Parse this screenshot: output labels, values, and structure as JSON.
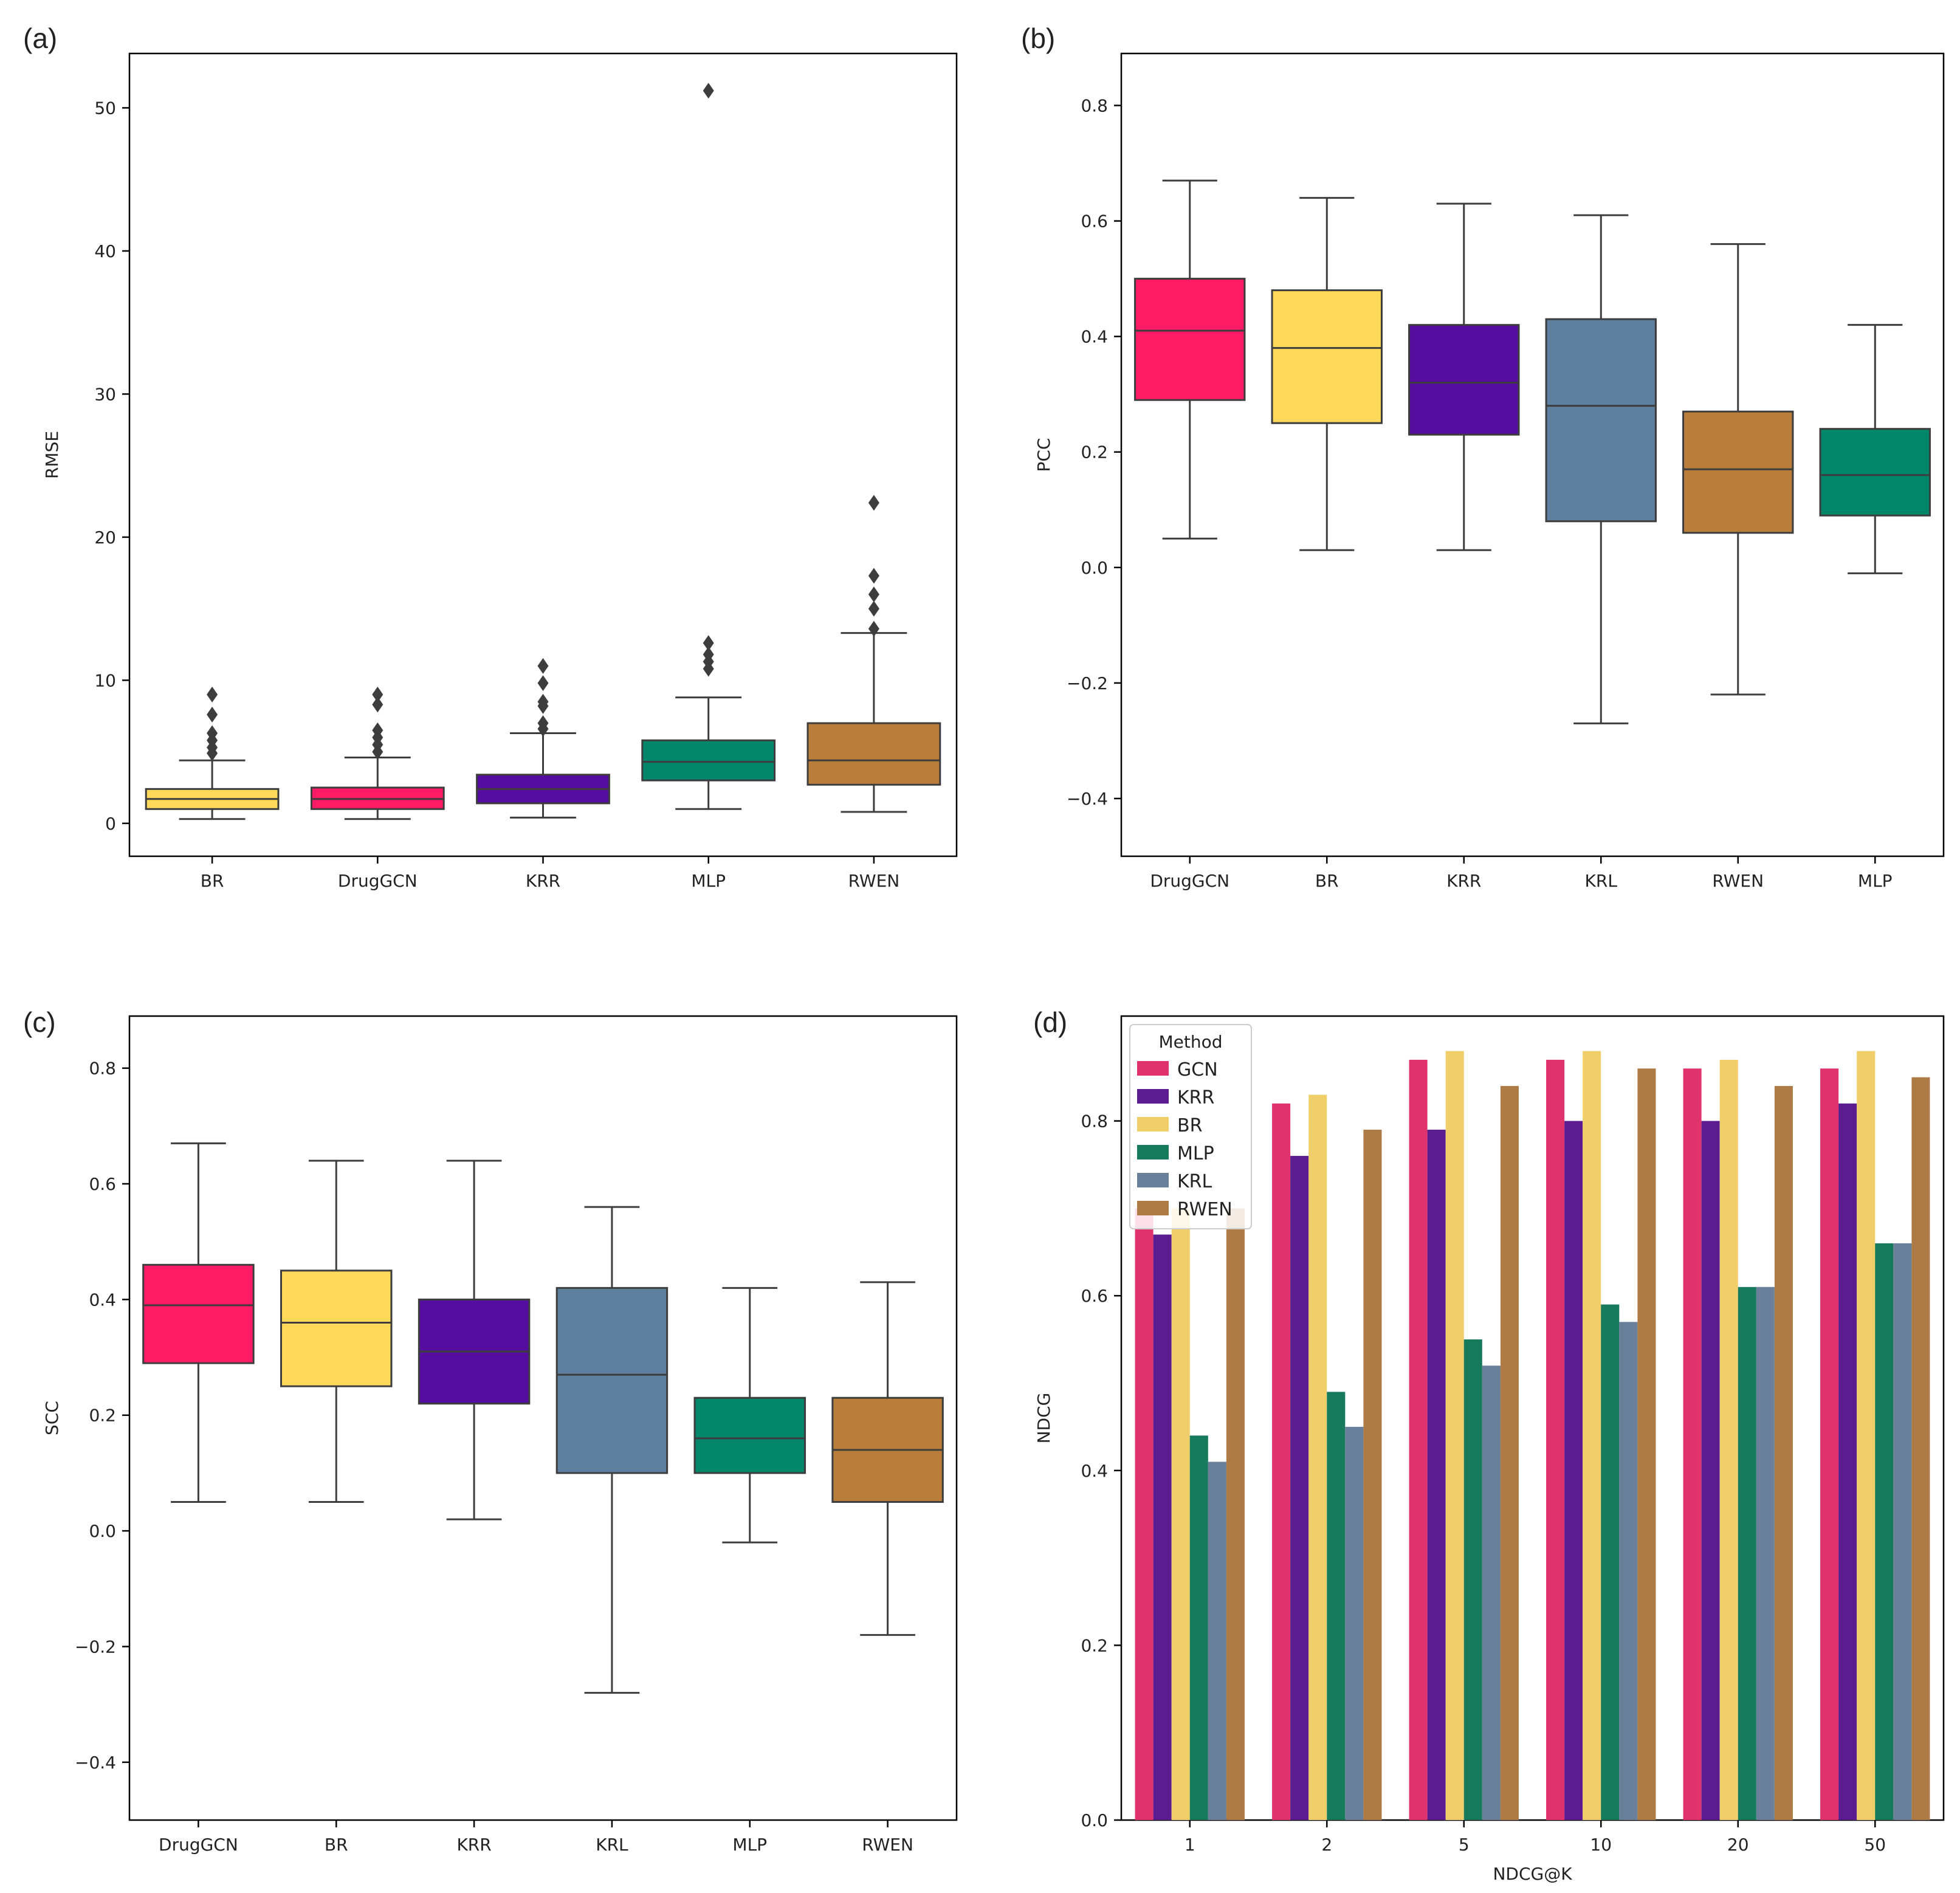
{
  "colors": {
    "DrugGCN": "#FF1A66",
    "BR": "#FFD95A",
    "KRR": "#540D9E",
    "KRL": "#5F7F9F",
    "RWEN": "#B97E3C",
    "MLP": "#04866A",
    "bar_GCN": "#E0336E",
    "bar_KRR": "#5A1C8E",
    "bar_BR": "#F0CF6A",
    "bar_MLP": "#177A5C",
    "bar_KRL": "#6A7F99",
    "bar_RWEN": "#AE7B47"
  },
  "chart_data": [
    {
      "panel": "(a)",
      "type": "box",
      "xlabel": "",
      "ylabel": "RMSE",
      "ylim": [
        -2.3,
        53.8
      ],
      "yticks": [
        0,
        10,
        20,
        30,
        40,
        50
      ],
      "tick_labels": [
        "0",
        "10",
        "20",
        "30",
        "40",
        "50"
      ],
      "categories": [
        "BR",
        "DrugGCN",
        "KRR",
        "MLP",
        "RWEN"
      ],
      "boxes": [
        {
          "name": "BR",
          "whisker_low": 0.3,
          "q1": 1.0,
          "median": 1.7,
          "q3": 2.4,
          "whisker_high": 4.4,
          "outliers": [
            4.9,
            5.3,
            5.8,
            6.3,
            7.6,
            9.0
          ]
        },
        {
          "name": "DrugGCN",
          "whisker_low": 0.3,
          "q1": 1.0,
          "median": 1.7,
          "q3": 2.5,
          "whisker_high": 4.6,
          "outliers": [
            5.0,
            5.5,
            6.0,
            6.5,
            8.3,
            9.0
          ]
        },
        {
          "name": "KRR",
          "whisker_low": 0.4,
          "q1": 1.4,
          "median": 2.4,
          "q3": 3.4,
          "whisker_high": 6.3,
          "outliers": [
            6.6,
            7.0,
            8.2,
            8.5,
            9.8,
            11.0
          ]
        },
        {
          "name": "MLP",
          "whisker_low": 1.0,
          "q1": 3.0,
          "median": 4.3,
          "q3": 5.8,
          "whisker_high": 8.8,
          "outliers": [
            10.8,
            11.3,
            11.8,
            12.6,
            51.2
          ]
        },
        {
          "name": "RWEN",
          "whisker_low": 0.8,
          "q1": 2.7,
          "median": 4.4,
          "q3": 7.0,
          "whisker_high": 13.3,
          "outliers": [
            13.6,
            15.0,
            16.0,
            17.3,
            22.4
          ]
        }
      ]
    },
    {
      "panel": "(b)",
      "type": "box",
      "xlabel": "",
      "ylabel": "PCC",
      "ylim": [
        -0.5,
        0.89
      ],
      "yticks": [
        -0.4,
        -0.2,
        0.0,
        0.2,
        0.4,
        0.6,
        0.8
      ],
      "tick_labels": [
        "−0.4",
        "−0.2",
        "0.0",
        "0.2",
        "0.4",
        "0.6",
        "0.8"
      ],
      "categories": [
        "DrugGCN",
        "BR",
        "KRR",
        "KRL",
        "RWEN",
        "MLP"
      ],
      "boxes": [
        {
          "name": "DrugGCN",
          "whisker_low": 0.05,
          "q1": 0.29,
          "median": 0.41,
          "q3": 0.5,
          "whisker_high": 0.67,
          "outliers": []
        },
        {
          "name": "BR",
          "whisker_low": 0.03,
          "q1": 0.25,
          "median": 0.38,
          "q3": 0.48,
          "whisker_high": 0.64,
          "outliers": []
        },
        {
          "name": "KRR",
          "whisker_low": 0.03,
          "q1": 0.23,
          "median": 0.32,
          "q3": 0.42,
          "whisker_high": 0.63,
          "outliers": []
        },
        {
          "name": "KRL",
          "whisker_low": -0.27,
          "q1": 0.08,
          "median": 0.28,
          "q3": 0.43,
          "whisker_high": 0.61,
          "outliers": []
        },
        {
          "name": "RWEN",
          "whisker_low": -0.22,
          "q1": 0.06,
          "median": 0.17,
          "q3": 0.27,
          "whisker_high": 0.56,
          "outliers": []
        },
        {
          "name": "MLP",
          "whisker_low": -0.01,
          "q1": 0.09,
          "median": 0.16,
          "q3": 0.24,
          "whisker_high": 0.42,
          "outliers": []
        }
      ]
    },
    {
      "panel": "(c)",
      "type": "box",
      "xlabel": "",
      "ylabel": "SCC",
      "ylim": [
        -0.5,
        0.89
      ],
      "yticks": [
        -0.4,
        -0.2,
        0.0,
        0.2,
        0.4,
        0.6,
        0.8
      ],
      "tick_labels": [
        "−0.4",
        "−0.2",
        "0.0",
        "0.2",
        "0.4",
        "0.6",
        "0.8"
      ],
      "categories": [
        "DrugGCN",
        "BR",
        "KRR",
        "KRL",
        "MLP",
        "RWEN"
      ],
      "boxes": [
        {
          "name": "DrugGCN",
          "whisker_low": 0.05,
          "q1": 0.29,
          "median": 0.39,
          "q3": 0.46,
          "whisker_high": 0.67,
          "outliers": []
        },
        {
          "name": "BR",
          "whisker_low": 0.05,
          "q1": 0.25,
          "median": 0.36,
          "q3": 0.45,
          "whisker_high": 0.64,
          "outliers": []
        },
        {
          "name": "KRR",
          "whisker_low": 0.02,
          "q1": 0.22,
          "median": 0.31,
          "q3": 0.4,
          "whisker_high": 0.64,
          "outliers": []
        },
        {
          "name": "KRL",
          "whisker_low": -0.28,
          "q1": 0.1,
          "median": 0.27,
          "q3": 0.42,
          "whisker_high": 0.56,
          "outliers": []
        },
        {
          "name": "MLP",
          "whisker_low": -0.02,
          "q1": 0.1,
          "median": 0.16,
          "q3": 0.23,
          "whisker_high": 0.42,
          "outliers": []
        },
        {
          "name": "RWEN",
          "whisker_low": -0.18,
          "q1": 0.05,
          "median": 0.14,
          "q3": 0.23,
          "whisker_high": 0.43,
          "outliers": []
        }
      ]
    },
    {
      "panel": "(d)",
      "type": "bar",
      "xlabel": "NDCG@K",
      "ylabel": "NDCG",
      "ylim": [
        0.0,
        0.92
      ],
      "yticks": [
        0.0,
        0.2,
        0.4,
        0.6,
        0.8
      ],
      "tick_labels": [
        "0.0",
        "0.2",
        "0.4",
        "0.6",
        "0.8"
      ],
      "categories": [
        "1",
        "2",
        "5",
        "10",
        "20",
        "50"
      ],
      "legend": {
        "title": "Method",
        "position": "top-left"
      },
      "series": [
        {
          "name": "GCN",
          "values": [
            0.7,
            0.82,
            0.87,
            0.87,
            0.86,
            0.86
          ]
        },
        {
          "name": "KRR",
          "values": [
            0.67,
            0.76,
            0.79,
            0.8,
            0.8,
            0.82
          ]
        },
        {
          "name": "BR",
          "values": [
            0.7,
            0.83,
            0.88,
            0.88,
            0.87,
            0.88
          ]
        },
        {
          "name": "MLP",
          "values": [
            0.44,
            0.49,
            0.55,
            0.59,
            0.61,
            0.66
          ]
        },
        {
          "name": "KRL",
          "values": [
            0.41,
            0.45,
            0.52,
            0.57,
            0.61,
            0.66
          ]
        },
        {
          "name": "RWEN",
          "values": [
            0.7,
            0.79,
            0.84,
            0.86,
            0.84,
            0.85
          ]
        }
      ]
    }
  ]
}
